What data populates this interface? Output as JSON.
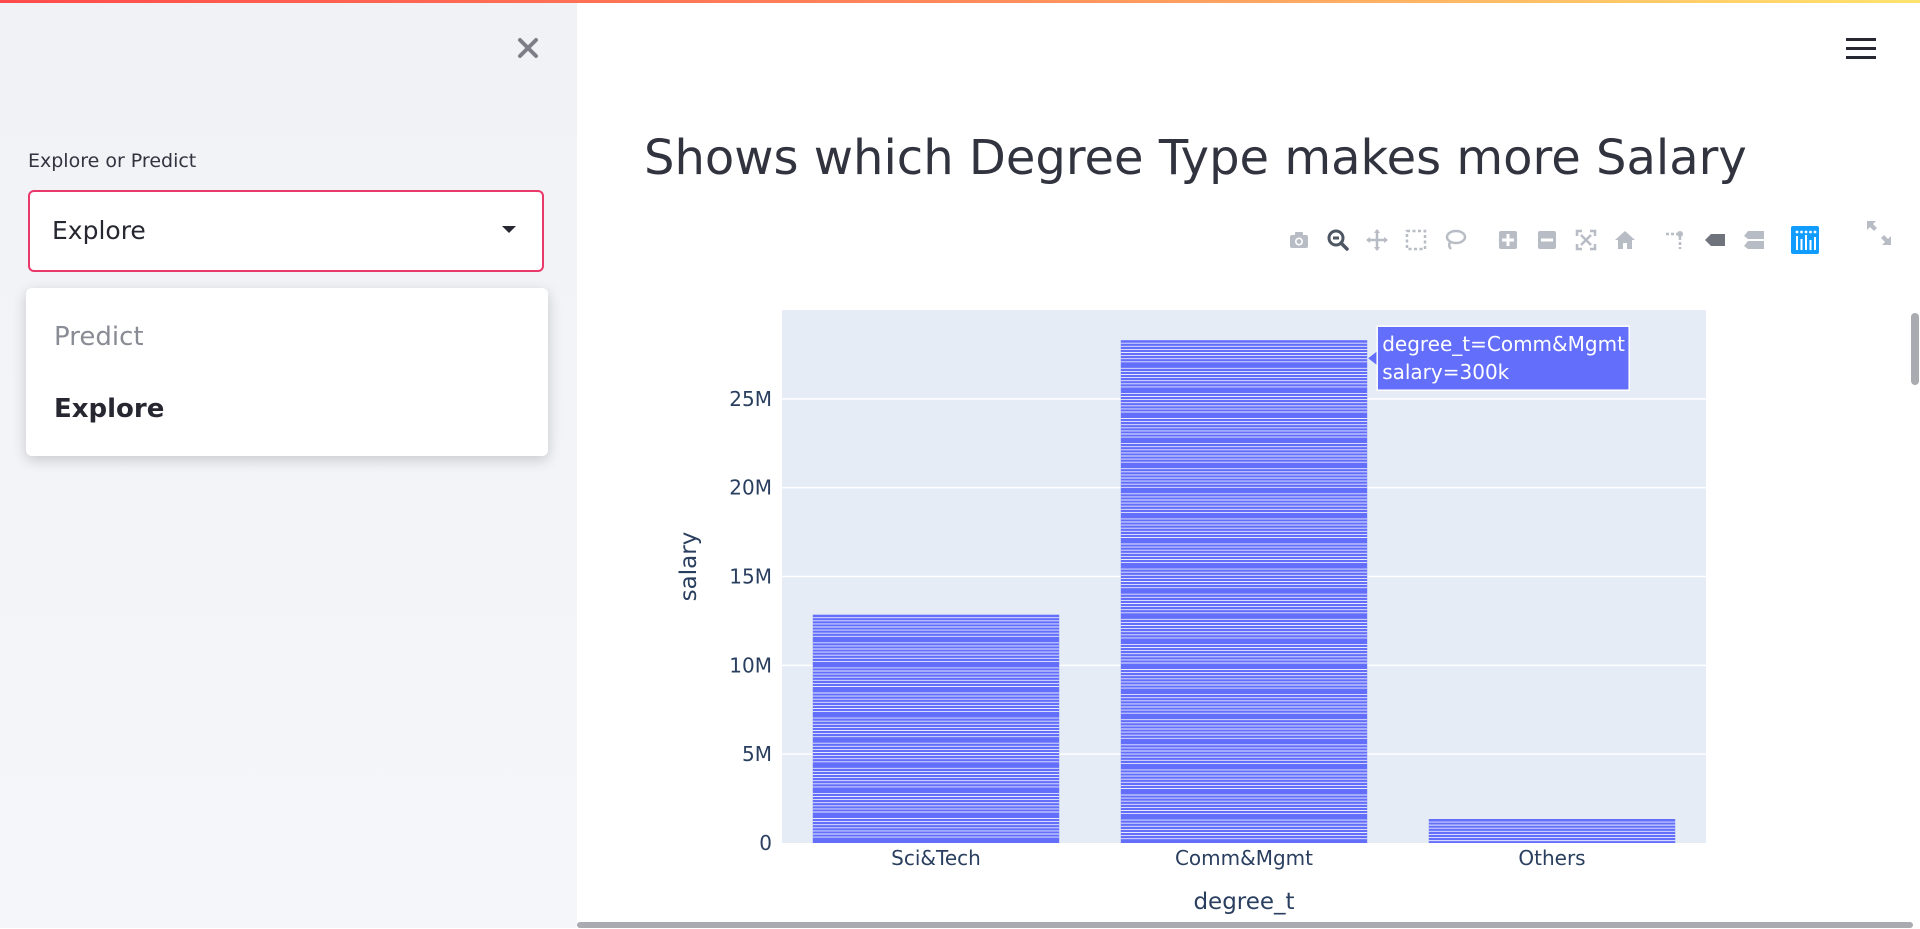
{
  "sidebar": {
    "select_label": "Explore or Predict",
    "selected_value": "Explore",
    "options": [
      "Predict",
      "Explore"
    ]
  },
  "main": {
    "title": "Shows which Degree Type makes more Salary"
  },
  "modebar": {
    "buttons": [
      "camera-icon",
      "zoom-icon",
      "pan-icon",
      "box-select-icon",
      "lasso-select-icon",
      "zoom-in-icon",
      "zoom-out-icon",
      "autoscale-icon",
      "reset-axes-icon",
      "spike-lines-icon",
      "hover-closest-icon",
      "hover-compare-icon",
      "plotly-logo-icon"
    ],
    "active": "zoom-icon"
  },
  "colors": {
    "accent": "#e9386a",
    "bar": "#636efa",
    "plot_bg": "#e5ecf6",
    "plotly_blue": "#119dff"
  },
  "chart_data": {
    "type": "bar",
    "title": "",
    "xlabel": "degree_t",
    "ylabel": "salary",
    "categories": [
      "Sci&Tech",
      "Comm&Mgmt",
      "Others"
    ],
    "values": [
      12850000,
      28300000,
      1350000
    ],
    "ylim": [
      0,
      30000000
    ],
    "yticks": [
      0,
      5000000,
      10000000,
      15000000,
      20000000,
      25000000
    ],
    "ytick_labels": [
      "0",
      "5M",
      "10M",
      "15M",
      "20M",
      "25M"
    ],
    "grid": true,
    "tooltip": {
      "line1": "degree_t=Comm&Mgmt",
      "line2": "salary=300k",
      "category": "Comm&Mgmt"
    }
  }
}
